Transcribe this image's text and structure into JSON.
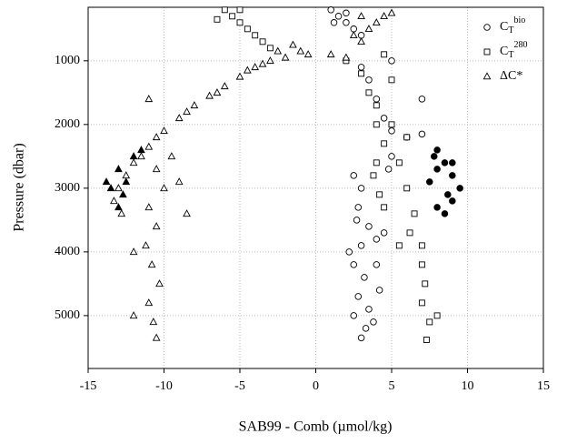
{
  "chart_data": {
    "type": "scatter",
    "xlabel": "SAB99 - Comb (µmol/kg)",
    "ylabel": "Pressure (dbar)",
    "xlim": [
      -15,
      15
    ],
    "xticks": [
      -15,
      -10,
      -5,
      0,
      5,
      10,
      15
    ],
    "ylim": [
      160,
      5830
    ],
    "y_inverted": true,
    "yticks": [
      1000,
      2000,
      3000,
      4000,
      5000
    ],
    "grid": true,
    "legend": "upper right",
    "series": [
      {
        "name": {
          "base": "C",
          "sub": "T",
          "sup": "bio"
        },
        "marker": "circle",
        "color": "#000000",
        "filled": false,
        "x": [
          1,
          1.5,
          2,
          2.5,
          3,
          1.2,
          2,
          3,
          3.5,
          4,
          4.5,
          5,
          6,
          7,
          7,
          2.5,
          3,
          2.8,
          3.5,
          3,
          2.5,
          3.2,
          2.8,
          3.5,
          2.5,
          3.3,
          3,
          4,
          4.5,
          4,
          4.2,
          5,
          5,
          2.2,
          2.7,
          3.8,
          4.8
        ],
        "values": [
          200,
          300,
          400,
          500,
          600,
          400,
          250,
          1100,
          1300,
          1600,
          1900,
          2100,
          2200,
          2150,
          1600,
          2800,
          3000,
          3300,
          3600,
          3900,
          4200,
          4400,
          4700,
          4900,
          5000,
          5200,
          5350,
          3800,
          3700,
          4200,
          4600,
          2500,
          1000,
          4000,
          3500,
          5100,
          2700
        ]
      },
      {
        "name": {
          "base": "C",
          "sub": "T",
          "sup": "280"
        },
        "marker": "square",
        "color": "#000000",
        "filled": false,
        "x": [
          -6,
          -5.5,
          -5,
          -4.5,
          -4,
          -3.5,
          -3,
          -5,
          -6.5,
          2,
          3,
          3.5,
          4,
          4,
          4.5,
          4,
          3.8,
          4.2,
          4.5,
          5,
          5.5,
          6,
          6.5,
          6.2,
          7,
          7,
          7.2,
          7,
          7.5,
          7.3,
          5.5,
          8,
          5,
          4.5,
          6
        ],
        "values": [
          200,
          300,
          400,
          500,
          600,
          700,
          800,
          200,
          350,
          1000,
          1200,
          1500,
          1700,
          2000,
          2300,
          2600,
          2800,
          3100,
          3300,
          2000,
          2600,
          3000,
          3400,
          3700,
          3900,
          4200,
          4500,
          4800,
          5100,
          5380,
          3900,
          5000,
          1300,
          900,
          2200
        ]
      },
      {
        "name": "ΔC*",
        "marker": "triangle",
        "color": "#000000",
        "filled": false,
        "x": [
          -0.5,
          -1,
          -2,
          -3,
          -4,
          -5,
          -6,
          -7,
          -8,
          -9,
          -10,
          -11,
          -12,
          -12.5,
          -13,
          -13.3,
          -12.8,
          -11.5,
          -10.5,
          -8.5,
          -6.5,
          -4.5,
          -3.5,
          -2.5,
          -1.5,
          1,
          2,
          3,
          3.5,
          4,
          4.5,
          5,
          2.5,
          3,
          -11,
          -10.5,
          -10,
          -11,
          -10.5,
          -11.2,
          -10.8,
          -10.3,
          -11,
          -10.7,
          -10.5,
          -12,
          -9,
          -9.5,
          -12,
          -8.5
        ],
        "values": [
          900,
          850,
          950,
          1000,
          1100,
          1250,
          1400,
          1550,
          1700,
          1900,
          2100,
          2350,
          2600,
          2800,
          3000,
          3200,
          3400,
          2500,
          2200,
          1800,
          1500,
          1150,
          1050,
          850,
          750,
          900,
          950,
          700,
          500,
          400,
          300,
          250,
          600,
          300,
          1600,
          2700,
          3000,
          3300,
          3600,
          3900,
          4200,
          4500,
          4800,
          5100,
          5350,
          5000,
          2900,
          2500,
          4000,
          3400
        ]
      },
      {
        "marker": "circle",
        "color": "#000000",
        "filled": true,
        "x": [
          8,
          8.5,
          9,
          9.5,
          9,
          8.5,
          8,
          7.5,
          8,
          9,
          8.7,
          7.8
        ],
        "values": [
          2400,
          2600,
          2800,
          3000,
          3200,
          3400,
          3300,
          2900,
          2700,
          2600,
          3100,
          2500
        ]
      },
      {
        "marker": "triangle",
        "color": "#000000",
        "filled": true,
        "x": [
          -13,
          -12.5,
          -13.5,
          -12,
          -13,
          -12.7,
          -11.5,
          -13.8
        ],
        "values": [
          2700,
          2900,
          3000,
          2500,
          3300,
          3100,
          2400,
          2900
        ]
      }
    ]
  }
}
